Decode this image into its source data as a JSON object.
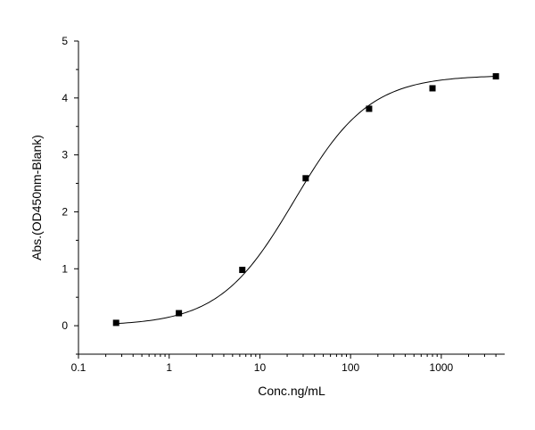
{
  "chart_data": {
    "type": "scatter",
    "title": "",
    "xlabel": "Conc.ng/mL",
    "ylabel": "Abs.(OD450nm-Blank)",
    "xscale": "log",
    "xlim": [
      0.1,
      5000
    ],
    "ylim": [
      -0.5,
      5
    ],
    "x_ticks": [
      0.1,
      1,
      10,
      100,
      1000
    ],
    "x_tick_labels": [
      "0.1",
      "1",
      "10",
      "100",
      "1000"
    ],
    "y_ticks": [
      0,
      1,
      2,
      3,
      4,
      5
    ],
    "y_tick_labels": [
      "0",
      "1",
      "2",
      "3",
      "4",
      "5"
    ],
    "grid": false,
    "legend": false,
    "series": [
      {
        "x": [
          0.26,
          1.28,
          6.4,
          32,
          160,
          800,
          4000
        ],
        "y": [
          0.05,
          0.22,
          0.98,
          2.59,
          3.81,
          4.17,
          4.38
        ],
        "marker": "square",
        "fit": "4PL"
      }
    ],
    "fit_params": {
      "bottom": 0.0,
      "top": 4.4,
      "ec50": 24,
      "hill": 1.05
    },
    "color": "#000000"
  }
}
